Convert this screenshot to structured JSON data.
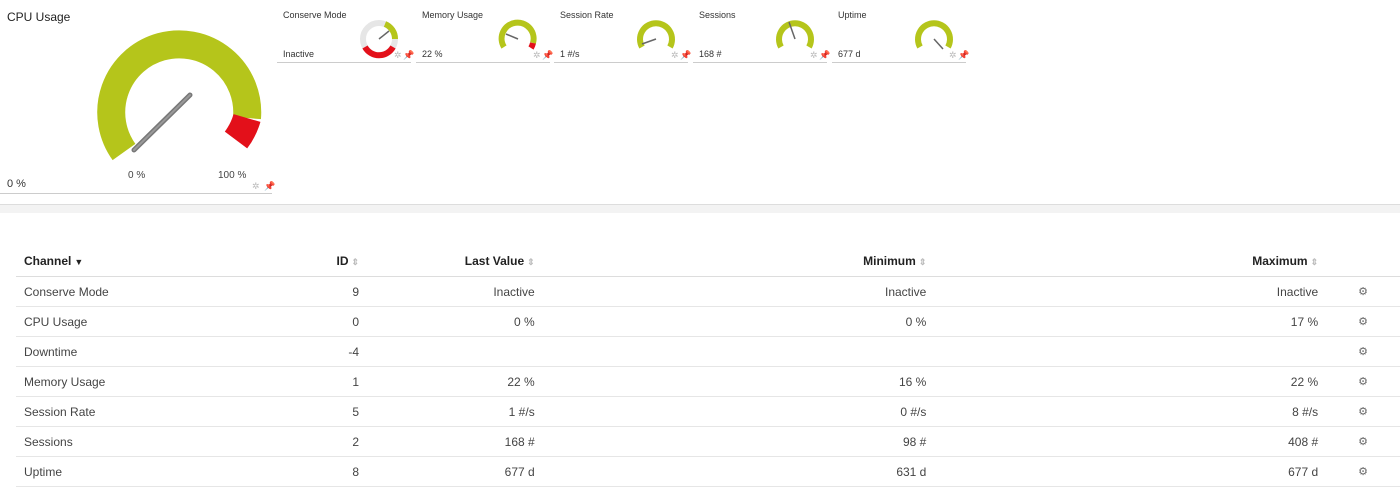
{
  "big_gauge": {
    "title": "CPU Usage",
    "current": "0 %",
    "min_label": "0 %",
    "max_label": "100 %",
    "value": 0,
    "needle_fraction": 0.71,
    "colors": {
      "ok": "#b5c51b",
      "error": "#e3101a",
      "needle": "#777777"
    }
  },
  "small_gauges": [
    {
      "title": "Conserve Mode",
      "value": "Inactive"
    },
    {
      "title": "Memory Usage",
      "value": "22 %"
    },
    {
      "title": "Session Rate",
      "value": "1 #/s"
    },
    {
      "title": "Sessions",
      "value": "168 #"
    },
    {
      "title": "Uptime",
      "value": "677 d"
    }
  ],
  "table": {
    "headers": {
      "channel": "Channel",
      "id": "ID",
      "last_value": "Last Value",
      "minimum": "Minimum",
      "maximum": "Maximum"
    },
    "rows": [
      {
        "channel": "Conserve Mode",
        "id": "9",
        "last_value": "Inactive",
        "minimum": "Inactive",
        "maximum": "Inactive"
      },
      {
        "channel": "CPU Usage",
        "id": "0",
        "last_value": "0 %",
        "minimum": "0 %",
        "maximum": "17 %"
      },
      {
        "channel": "Downtime",
        "id": "-4",
        "last_value": "",
        "minimum": "",
        "maximum": ""
      },
      {
        "channel": "Memory Usage",
        "id": "1",
        "last_value": "22 %",
        "minimum": "16 %",
        "maximum": "22 %"
      },
      {
        "channel": "Session Rate",
        "id": "5",
        "last_value": "1 #/s",
        "minimum": "0 #/s",
        "maximum": "8 #/s"
      },
      {
        "channel": "Sessions",
        "id": "2",
        "last_value": "168 #",
        "minimum": "98 #",
        "maximum": "408 #"
      },
      {
        "channel": "Uptime",
        "id": "8",
        "last_value": "677 d",
        "minimum": "631 d",
        "maximum": "677 d"
      }
    ]
  }
}
